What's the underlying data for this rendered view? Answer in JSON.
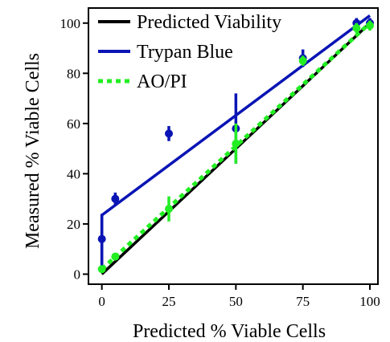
{
  "chart_data": {
    "type": "line",
    "title": "",
    "xlabel": "Predicted % Viable Cells",
    "ylabel": "Measured % Viable Cells",
    "xlim": [
      -5,
      103
    ],
    "ylim": [
      -4,
      106
    ],
    "xticks": [
      0,
      25,
      50,
      75,
      100
    ],
    "yticks": [
      0,
      20,
      40,
      60,
      80,
      100
    ],
    "grid": false,
    "legend_position": "top-left",
    "series": [
      {
        "name": "Predicted Viability",
        "kind": "line",
        "color": "#000000",
        "style": "solid",
        "x": [
          0,
          100
        ],
        "y": [
          0,
          100
        ]
      },
      {
        "name": "Trypan Blue",
        "kind": "line",
        "color": "#0a14b4",
        "style": "solid",
        "x": [
          0,
          0,
          100
        ],
        "y": [
          2,
          23.5,
          103
        ]
      },
      {
        "name": "AO/PI",
        "kind": "line",
        "color": "#22ee22",
        "style": "dotted",
        "x": [
          0,
          100
        ],
        "y": [
          2,
          100
        ]
      }
    ],
    "points": [
      {
        "series": "Trypan Blue",
        "color": "#0a14b4",
        "x": [
          0,
          5,
          25,
          50,
          75,
          95,
          100
        ],
        "y": [
          14,
          30,
          56,
          58,
          86,
          100,
          100
        ],
        "err": [
          10,
          2.5,
          3,
          14,
          3.5,
          2,
          2
        ]
      },
      {
        "series": "AO/PI",
        "color": "#22ee22",
        "x": [
          0,
          5,
          25,
          50,
          75,
          95,
          100
        ],
        "y": [
          2,
          7,
          26,
          52,
          85,
          98,
          99
        ],
        "err": [
          1,
          1,
          5,
          8,
          2,
          2,
          2
        ]
      }
    ]
  }
}
